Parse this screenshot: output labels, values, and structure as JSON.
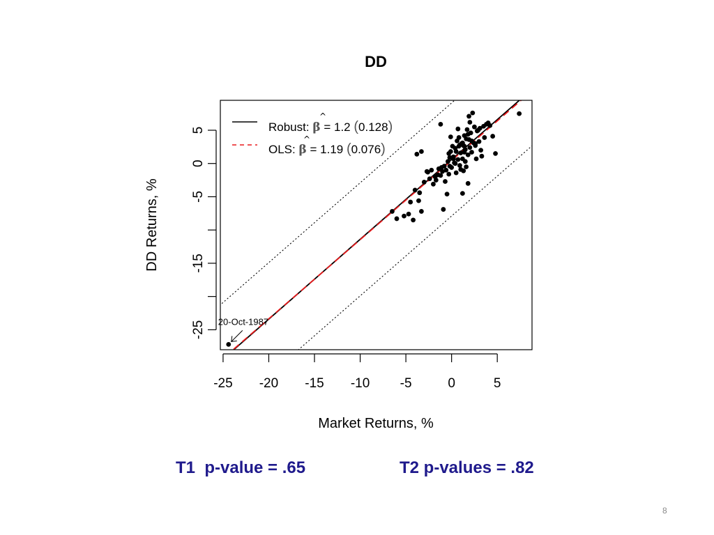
{
  "slide": {
    "t1_text": "T1  p-value = .65",
    "t2_text": "T2 p-values = .82",
    "page_number": "8"
  },
  "chart_data": {
    "type": "scatter",
    "title": "DD",
    "xlabel": "Market Returns, %",
    "ylabel": "DD Returns, %",
    "xlim": [
      -25.3,
      8.8
    ],
    "ylim": [
      -28.0,
      9.5
    ],
    "x_ticks": [
      -25,
      -20,
      -15,
      -10,
      -5,
      0,
      5
    ],
    "x_tick_labels": [
      "-25",
      "-20",
      "-15",
      "-10",
      "-5",
      "0",
      "5"
    ],
    "y_ticks": [
      -25,
      -20,
      -15,
      -10,
      -5,
      0,
      5
    ],
    "y_tick_labels": [
      "-25",
      "",
      "-15",
      "",
      "-5",
      "0",
      "5"
    ],
    "grid": false,
    "legend_position": "top-left",
    "colors": {
      "points": "#000000",
      "robust": "#000000",
      "ols": "#e8191b",
      "band": "#000000"
    },
    "series": [
      {
        "name": "Robust",
        "kind": "line",
        "intercept": 0.6,
        "slope": 1.2,
        "legend": {
          "prefix": "Robust: ",
          "beta_hat": "β",
          "eq": " = 1.2 ",
          "se_open": "(",
          "se": "0.128",
          "se_close": ")"
        }
      },
      {
        "name": "OLS",
        "kind": "dashed-line",
        "intercept": 0.45,
        "slope": 1.19,
        "legend": {
          "prefix": "OLS: ",
          "beta_hat": "β",
          "eq": " = 1.19 ",
          "se_open": "(",
          "se": "0.076",
          "se_close": ")"
        }
      }
    ],
    "band": {
      "intercept": 0.6,
      "slope": 1.2,
      "offset": 8.5
    },
    "annotations": [
      {
        "text": "20-Oct-1987",
        "x": -24.4,
        "y": -27.2
      }
    ],
    "points": [
      [
        -24.4,
        -27.2
      ],
      [
        -6.5,
        -7.2
      ],
      [
        -6.0,
        -8.3
      ],
      [
        -5.2,
        -7.9
      ],
      [
        -4.7,
        -7.6
      ],
      [
        -4.2,
        -8.5
      ],
      [
        -4.0,
        -4.0
      ],
      [
        -3.5,
        -4.4
      ],
      [
        -3.3,
        -7.2
      ],
      [
        -3.6,
        -5.6
      ],
      [
        -4.5,
        -5.8
      ],
      [
        -3.0,
        -2.8
      ],
      [
        -2.7,
        -1.2
      ],
      [
        -2.4,
        -2.3
      ],
      [
        -2.2,
        -1.0
      ],
      [
        -2.0,
        -3.1
      ],
      [
        -1.8,
        -2.0
      ],
      [
        -1.7,
        -2.5
      ],
      [
        -1.5,
        -1.7
      ],
      [
        -1.4,
        -0.8
      ],
      [
        -1.2,
        -1.8
      ],
      [
        -1.0,
        -1.2
      ],
      [
        -0.8,
        -0.4
      ],
      [
        -0.7,
        -2.7
      ],
      [
        -0.5,
        -4.6
      ],
      [
        -0.9,
        -6.9
      ],
      [
        -0.4,
        0.3
      ],
      [
        -0.3,
        -1.6
      ],
      [
        -0.2,
        0.9
      ],
      [
        -0.1,
        1.8
      ],
      [
        0.0,
        -0.6
      ],
      [
        0.1,
        2.6
      ],
      [
        0.2,
        1.0
      ],
      [
        0.3,
        0.1
      ],
      [
        0.4,
        2.3
      ],
      [
        0.5,
        -1.4
      ],
      [
        0.6,
        3.4
      ],
      [
        0.7,
        0.6
      ],
      [
        0.8,
        2.6
      ],
      [
        0.9,
        -0.3
      ],
      [
        1.0,
        1.6
      ],
      [
        1.1,
        3.0
      ],
      [
        1.2,
        0.7
      ],
      [
        1.3,
        -1.1
      ],
      [
        1.4,
        4.2
      ],
      [
        1.5,
        2.1
      ],
      [
        1.6,
        -0.5
      ],
      [
        1.7,
        5.1
      ],
      [
        1.8,
        1.3
      ],
      [
        1.9,
        3.6
      ],
      [
        2.0,
        2.4
      ],
      [
        2.1,
        4.6
      ],
      [
        2.2,
        1.7
      ],
      [
        2.3,
        7.6
      ],
      [
        2.4,
        3.1
      ],
      [
        2.5,
        5.5
      ],
      [
        2.6,
        2.7
      ],
      [
        2.7,
        0.7
      ],
      [
        2.8,
        4.9
      ],
      [
        3.0,
        3.3
      ],
      [
        3.1,
        5.3
      ],
      [
        3.2,
        2.0
      ],
      [
        3.3,
        1.1
      ],
      [
        3.5,
        5.6
      ],
      [
        3.6,
        3.9
      ],
      [
        3.8,
        5.9
      ],
      [
        4.0,
        6.1
      ],
      [
        4.2,
        5.7
      ],
      [
        4.5,
        4.1
      ],
      [
        4.8,
        1.5
      ],
      [
        -1.2,
        5.9
      ],
      [
        1.4,
        1.7
      ],
      [
        0.5,
        1.8
      ],
      [
        -0.1,
        4.0
      ],
      [
        2.0,
        6.2
      ],
      [
        1.9,
        7.1
      ],
      [
        1.6,
        3.7
      ],
      [
        1.2,
        3.1
      ],
      [
        1.0,
        -0.9
      ],
      [
        -0.6,
        -1.0
      ],
      [
        0.9,
        2.8
      ],
      [
        0.4,
        0.0
      ],
      [
        0.2,
        0.7
      ],
      [
        -0.2,
        -0.4
      ],
      [
        1.8,
        4.4
      ],
      [
        2.9,
        5.0
      ],
      [
        1.5,
        0.3
      ],
      [
        1.3,
        2.7
      ],
      [
        2.2,
        3.4
      ],
      [
        0.7,
        5.2
      ],
      [
        -0.3,
        1.5
      ],
      [
        1.4,
        2.6
      ],
      [
        1.8,
        -3.0
      ],
      [
        1.2,
        -4.5
      ],
      [
        -3.8,
        1.4
      ],
      [
        -3.3,
        1.8
      ],
      [
        -2.6,
        -1.3
      ],
      [
        -1.1,
        -0.6
      ],
      [
        0.8,
        3.9
      ],
      [
        2.6,
        3.0
      ],
      [
        7.4,
        7.5
      ]
    ]
  }
}
